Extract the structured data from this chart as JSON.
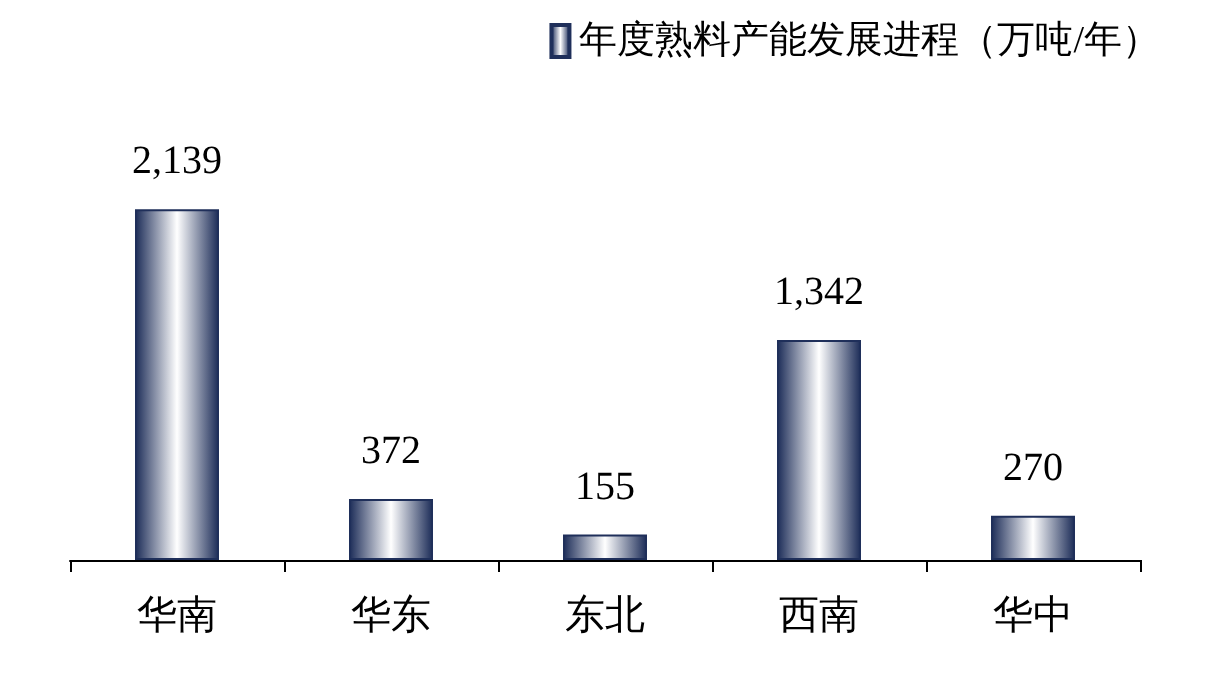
{
  "chart_data": {
    "type": "bar",
    "categories": [
      "华南",
      "华东",
      "东北",
      "西南",
      "华中"
    ],
    "series": [
      {
        "name": "年度熟料产能发展进程（万吨/年）",
        "color": "#1f2f5a",
        "values": [
          2139,
          372,
          155,
          1342,
          270
        ],
        "value_labels": [
          "2,139",
          "372",
          "155",
          "1,342",
          "270"
        ]
      }
    ],
    "legend": "top right",
    "grid": false
  }
}
